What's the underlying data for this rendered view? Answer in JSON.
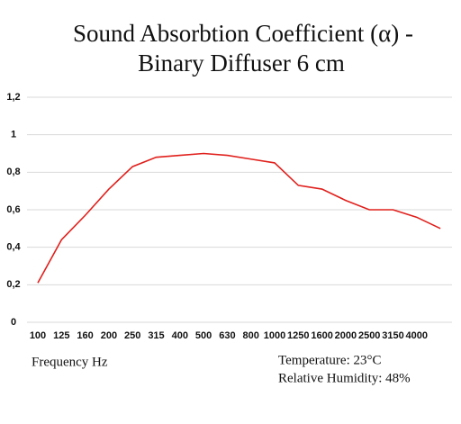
{
  "chart_data": {
    "type": "line",
    "title": [
      "Sound Absorbtion Coefficient (α) -",
      "Binary Diffuser 6 cm"
    ],
    "x_label": "Frequency Hz",
    "annotations": [
      "Temperature: 23°C",
      "Relative Humidity: 48%"
    ],
    "categories": [
      "100",
      "125",
      "160",
      "200",
      "250",
      "315",
      "400",
      "500",
      "630",
      "800",
      "1000",
      "1250",
      "1600",
      "2000",
      "2500",
      "3150",
      "4000",
      null
    ],
    "series": [
      {
        "color": "#e0201c",
        "values": [
          0.21,
          0.44,
          0.57,
          0.71,
          0.83,
          0.88,
          0.89,
          0.9,
          0.89,
          0.87,
          0.85,
          0.73,
          0.71,
          0.65,
          0.6,
          0.6,
          0.56,
          0.5
        ]
      }
    ],
    "ylim": [
      0,
      1.2
    ],
    "yticks": [
      0,
      {
        "value": 0.2,
        "label": "0,2"
      },
      {
        "value": 0.4,
        "label": "0,4"
      },
      {
        "value": 0.6,
        "label": "0,6"
      },
      {
        "value": 0.8,
        "label": "0,8"
      },
      1,
      {
        "value": 1.2,
        "label": "1,2"
      }
    ],
    "grid": true
  }
}
